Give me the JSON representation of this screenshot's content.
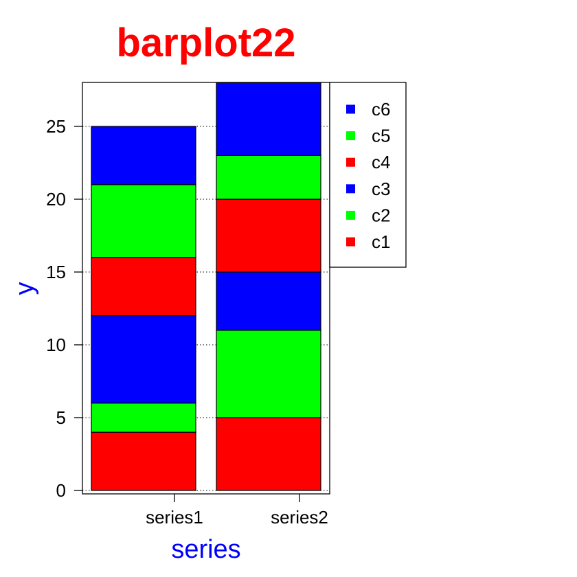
{
  "chart_data": {
    "type": "bar",
    "stacked": true,
    "title": "barplot22",
    "xlabel": "series",
    "ylabel": "y",
    "categories": [
      "series1",
      "series2"
    ],
    "series": [
      {
        "name": "c1",
        "color": "#ff0000",
        "values": [
          4,
          5
        ]
      },
      {
        "name": "c2",
        "color": "#00ff00",
        "values": [
          2,
          6
        ]
      },
      {
        "name": "c3",
        "color": "#0000ff",
        "values": [
          6,
          4
        ]
      },
      {
        "name": "c4",
        "color": "#ff0000",
        "values": [
          4,
          5
        ]
      },
      {
        "name": "c5",
        "color": "#00ff00",
        "values": [
          5,
          3
        ]
      },
      {
        "name": "c6",
        "color": "#0000ff",
        "values": [
          4,
          5
        ]
      }
    ],
    "ylim": [
      0,
      28
    ],
    "yticks": [
      0,
      5,
      10,
      15,
      20,
      25
    ],
    "grid": "horizontal-dotted",
    "legend_position": "right",
    "legend_order": [
      "c6",
      "c5",
      "c4",
      "c3",
      "c2",
      "c1"
    ],
    "title_color": "#ff0000",
    "label_color": "#0000ff"
  }
}
